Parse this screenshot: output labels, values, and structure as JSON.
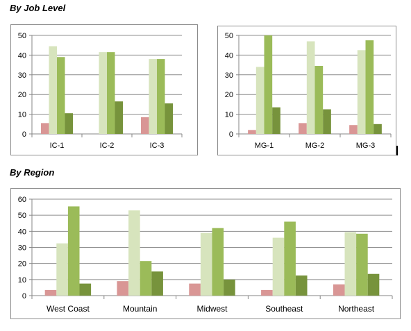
{
  "headings": {
    "job_level": "By Job Level",
    "region": "By Region"
  },
  "colors": [
    "#d99695",
    "#d7e4bd",
    "#9bbb59",
    "#77933c"
  ],
  "chart_data": [
    {
      "type": "bar",
      "categories": [
        "IC-1",
        "IC-2",
        "IC-3"
      ],
      "series": [
        {
          "values": [
            5.5,
            0,
            8.5
          ]
        },
        {
          "values": [
            44.5,
            41.5,
            38
          ]
        },
        {
          "values": [
            39,
            41.5,
            38
          ]
        },
        {
          "values": [
            10.5,
            16.5,
            15.5
          ]
        }
      ],
      "ylim": [
        0,
        50
      ],
      "yticks": [
        0,
        10,
        20,
        30,
        40,
        50
      ],
      "grid": true
    },
    {
      "type": "bar",
      "categories": [
        "MG-1",
        "MG-2",
        "MG-3"
      ],
      "series": [
        {
          "values": [
            2,
            5.5,
            4.5
          ]
        },
        {
          "values": [
            34,
            47,
            42.5
          ]
        },
        {
          "values": [
            50,
            34.5,
            47.5
          ]
        },
        {
          "values": [
            13.5,
            12.5,
            5
          ]
        }
      ],
      "ylim": [
        0,
        50
      ],
      "yticks": [
        0,
        10,
        20,
        30,
        40,
        50
      ],
      "grid": true
    },
    {
      "type": "bar",
      "categories": [
        "West Coast",
        "Mountain",
        "Midwest",
        "Southeast",
        "Northeast"
      ],
      "series": [
        {
          "values": [
            3.5,
            9,
            7.5,
            3.5,
            7
          ]
        },
        {
          "values": [
            32.5,
            53,
            39,
            36,
            39.5
          ]
        },
        {
          "values": [
            55.5,
            21.5,
            42,
            46,
            38.5
          ]
        },
        {
          "values": [
            7.5,
            15,
            10,
            12.5,
            13.5
          ]
        }
      ],
      "ylim": [
        0,
        60
      ],
      "yticks": [
        0,
        10,
        20,
        30,
        40,
        50,
        60
      ],
      "grid": true
    }
  ]
}
